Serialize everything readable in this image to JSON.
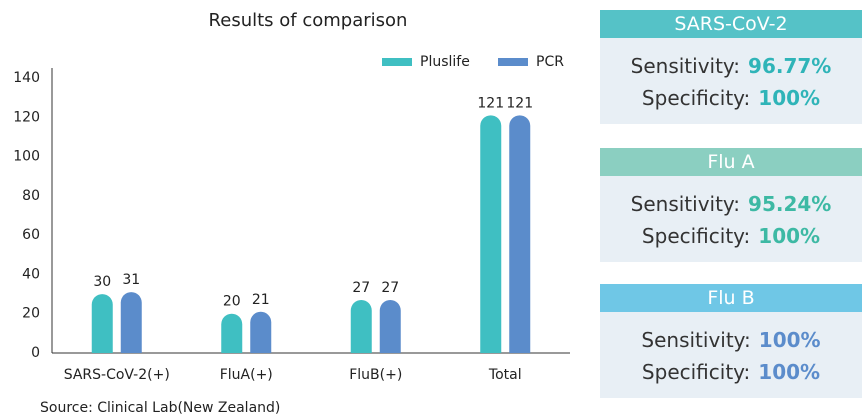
{
  "chart_data": {
    "type": "bar",
    "title": "Results of comparison",
    "categories": [
      "SARS-CoV-2(+)",
      "FluA(+)",
      "FluB(+)",
      "Total"
    ],
    "series": [
      {
        "name": "Pluslife",
        "color": "#3fbfc2",
        "values": [
          30,
          20,
          27,
          121
        ]
      },
      {
        "name": "PCR",
        "color": "#5b8ccb",
        "values": [
          31,
          21,
          27,
          121
        ]
      }
    ],
    "ylim": [
      0,
      140
    ],
    "yticks": [
      0,
      20,
      40,
      60,
      80,
      100,
      120,
      140
    ],
    "grid": false,
    "legend": "top-right",
    "source": "Source: Clinical Lab(New Zealand)"
  },
  "panels": [
    {
      "title": "SARS-CoV-2",
      "header_color": "#55c2c7",
      "value_color": "#2fb4b8",
      "rows": [
        {
          "label": "Sensitivity:",
          "value": "96.77%"
        },
        {
          "label": "Specificity:",
          "value": "100%"
        }
      ]
    },
    {
      "title": "Flu A",
      "header_color": "#8bcfc1",
      "value_color": "#3db9a4",
      "rows": [
        {
          "label": "Sensitivity:",
          "value": "95.24%"
        },
        {
          "label": "Specificity:",
          "value": "100%"
        }
      ]
    },
    {
      "title": "Flu B",
      "header_color": "#6fc7e6",
      "value_color": "#5b8ccb",
      "rows": [
        {
          "label": "Sensitivity:",
          "value": "100%"
        },
        {
          "label": "Specificity:",
          "value": "100%"
        }
      ]
    }
  ]
}
